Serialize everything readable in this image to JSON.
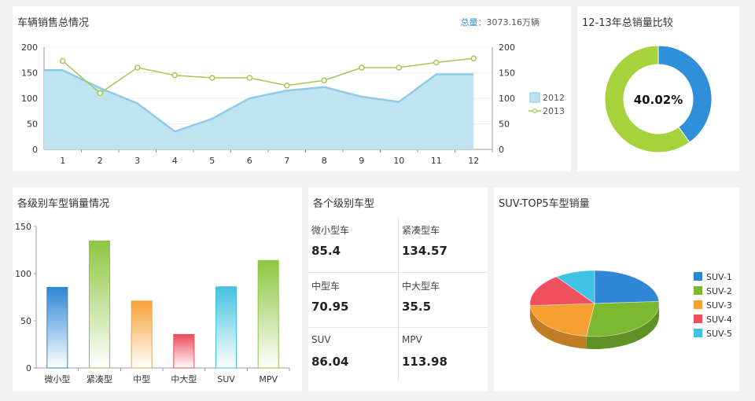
{
  "panels": {
    "sales": {
      "title": "车辆销售总情况",
      "total_label": "总量：",
      "total_value": "3073.16万辆"
    },
    "donut": {
      "title": "12-13年总销量比较",
      "center_text": "40.02%"
    },
    "level_sales": {
      "title": "各级别车型销量情况"
    },
    "level_types": {
      "title": "各个级别车型",
      "cells": [
        {
          "label": "微小型车",
          "value": "85.4"
        },
        {
          "label": "紧凑型车",
          "value": "134.57"
        },
        {
          "label": "中型车",
          "value": "70.95"
        },
        {
          "label": "中大型车",
          "value": "35.5"
        },
        {
          "label": "SUV",
          "value": "86.04"
        },
        {
          "label": "MPV",
          "value": "113.98"
        }
      ]
    },
    "suv_top5": {
      "title": "SUV-TOP5车型销量"
    }
  },
  "colors": {
    "accent_blue": "#2f8fd8",
    "area_fill": "#bfe3f1",
    "area_line": "#8fcbe6",
    "line_green": "#a6c75a"
  },
  "chart_data": [
    {
      "type": "area",
      "x": [
        "1",
        "2",
        "3",
        "4",
        "5",
        "6",
        "7",
        "8",
        "9",
        "10",
        "11",
        "12"
      ],
      "series": [
        {
          "name": "2012",
          "type": "area",
          "values": [
            155,
            120,
            90,
            35,
            60,
            100,
            115,
            122,
            103,
            93,
            147,
            147
          ]
        },
        {
          "name": "2013",
          "type": "line",
          "values": [
            173,
            110,
            160,
            145,
            140,
            140,
            125,
            135,
            160,
            160,
            170,
            178
          ]
        }
      ],
      "yticks": [
        "0",
        "50",
        "100",
        "150",
        "200"
      ],
      "ylim": [
        0,
        200
      ],
      "legend": "right"
    },
    {
      "type": "pie",
      "values": [
        40.02,
        59.98
      ],
      "colors": [
        "#2f8fd8",
        "#a6d23c"
      ],
      "donut": true
    },
    {
      "type": "bar",
      "categories": [
        "微小型",
        "紧凑型",
        "中型",
        "中大型",
        "SUV",
        "MPV"
      ],
      "values": [
        85.4,
        134.57,
        70.95,
        35.5,
        86.04,
        113.98
      ],
      "colors": [
        "#2f86d4",
        "#8dc63f",
        "#f7a236",
        "#ef4a5a",
        "#45c1e0",
        "#8dc63f"
      ],
      "yticks": [
        "0",
        "50",
        "100",
        "150"
      ],
      "ylim": [
        0,
        150
      ]
    },
    {
      "type": "pie",
      "three_d": true,
      "categories": [
        "SUV-1",
        "SUV-2",
        "SUV-3",
        "SUV-4",
        "SUV-5"
      ],
      "values": [
        24,
        28,
        22,
        16,
        10
      ],
      "colors": [
        "#2f86d4",
        "#7cb82f",
        "#f5a030",
        "#ef4f5f",
        "#3ec3e4"
      ],
      "legend": "right"
    }
  ]
}
